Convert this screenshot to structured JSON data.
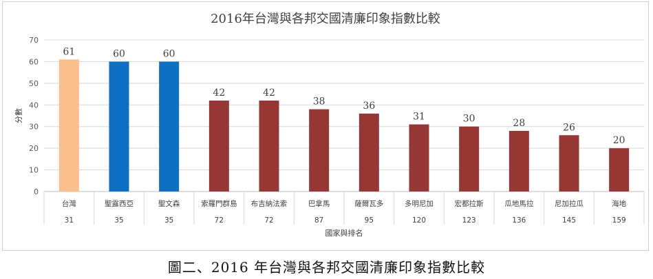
{
  "chart_data": {
    "type": "bar",
    "title": "2016年台灣與各邦交國清廉印象指數比較",
    "ylabel": "分數",
    "xlabel": "國家與排名",
    "ylim": [
      0,
      70
    ],
    "yticks": [
      0,
      10,
      20,
      30,
      40,
      50,
      60,
      70
    ],
    "grid": true,
    "categories": [
      "台灣",
      "聖露西亞",
      "聖文森",
      "索羅門群島",
      "布吉納法索",
      "巴拿馬",
      "薩爾瓦多",
      "多明尼加",
      "宏都拉斯",
      "瓜地馬拉",
      "尼加拉瓜",
      "海地"
    ],
    "ranks": [
      "31",
      "35",
      "35",
      "72",
      "72",
      "87",
      "95",
      "120",
      "123",
      "136",
      "145",
      "159"
    ],
    "values": [
      61,
      60,
      60,
      42,
      42,
      38,
      36,
      31,
      30,
      28,
      26,
      20
    ],
    "colors": [
      "#f9c08e",
      "#0f6fc0",
      "#0f6fc0",
      "#953735",
      "#953735",
      "#953735",
      "#953735",
      "#953735",
      "#953735",
      "#953735",
      "#953735",
      "#953735"
    ]
  },
  "caption": "圖二、2016 年台灣與各邦交國清廉印象指數比較"
}
